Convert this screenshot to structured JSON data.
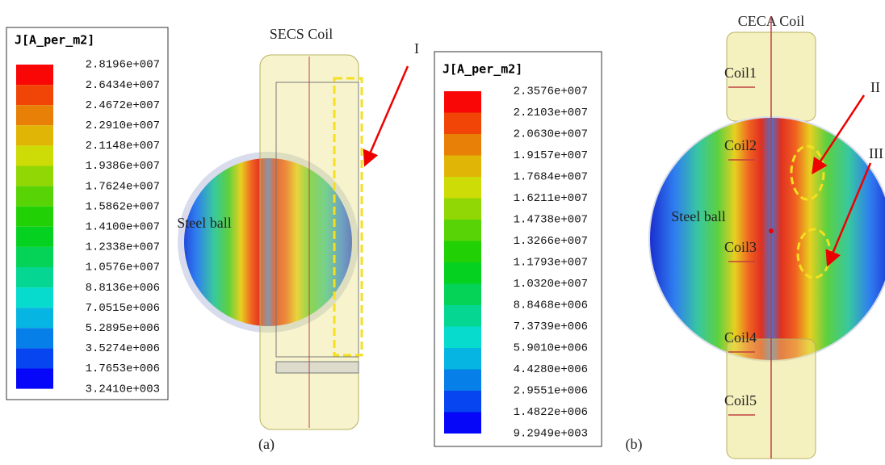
{
  "panel_a": {
    "label": "(a)",
    "title": "SECS Coil",
    "legend": {
      "title": "J[A_per_m2]",
      "labels": [
        "2.8196e+007",
        "2.6434e+007",
        "2.4672e+007",
        "2.2910e+007",
        "2.1148e+007",
        "1.9386e+007",
        "1.7624e+007",
        "1.5862e+007",
        "1.4100e+007",
        "1.2338e+007",
        "1.0576e+007",
        "8.8136e+006",
        "7.0515e+006",
        "5.2895e+006",
        "3.5274e+006",
        "1.7653e+006",
        "3.2410e+003"
      ]
    },
    "marker": "I",
    "steel_ball": "Steel ball"
  },
  "panel_b": {
    "label": "(b)",
    "title": "CECA Coil",
    "legend": {
      "title": "J[A_per_m2]",
      "labels": [
        "2.3576e+007",
        "2.2103e+007",
        "2.0630e+007",
        "1.9157e+007",
        "1.7684e+007",
        "1.6211e+007",
        "1.4738e+007",
        "1.3266e+007",
        "1.1793e+007",
        "1.0320e+007",
        "8.8468e+006",
        "7.3739e+006",
        "5.9010e+006",
        "4.4280e+006",
        "2.9551e+006",
        "1.4822e+006",
        "9.2949e+003"
      ]
    },
    "coils": [
      "Coil1",
      "Coil2",
      "Coil3",
      "Coil4",
      "Coil5"
    ],
    "markers": [
      "II",
      "III"
    ],
    "steel_ball": "Steel ball"
  }
}
